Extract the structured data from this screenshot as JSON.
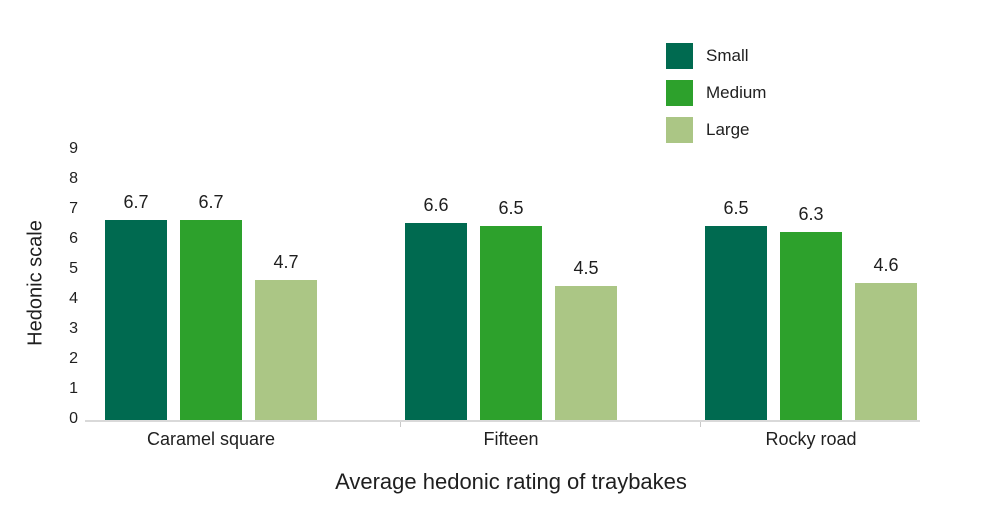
{
  "chart_data": {
    "type": "bar",
    "title": "Average hedonic rating of traybakes",
    "xlabel": "",
    "ylabel": "Hedonic scale",
    "categories": [
      "Caramel square",
      "Fifteen",
      "Rocky road"
    ],
    "series": [
      {
        "name": "Small",
        "color": "#006A50",
        "values": [
          6.7,
          6.6,
          6.5
        ],
        "labels": [
          "6.7",
          "6.6",
          "6.5"
        ]
      },
      {
        "name": "Medium",
        "color": "#2DA12C",
        "values": [
          6.7,
          6.5,
          6.3
        ],
        "labels": [
          "6.7",
          "6.5",
          "6.3"
        ]
      },
      {
        "name": "Large",
        "color": "#ABC685",
        "values": [
          4.7,
          4.5,
          4.6
        ],
        "labels": [
          "4.7",
          "4.5",
          "4.6"
        ]
      }
    ],
    "ylim": [
      0,
      9
    ],
    "yticks": [
      "0",
      "1",
      "2",
      "3",
      "4",
      "5",
      "6",
      "7",
      "8",
      "9"
    ],
    "grid": false,
    "legend_position": "top-right",
    "value_labels_shown": true
  },
  "colors": {
    "background": "#FFFFFF",
    "axis_line": "#D9D9D9",
    "text": "#1F1F1F"
  }
}
